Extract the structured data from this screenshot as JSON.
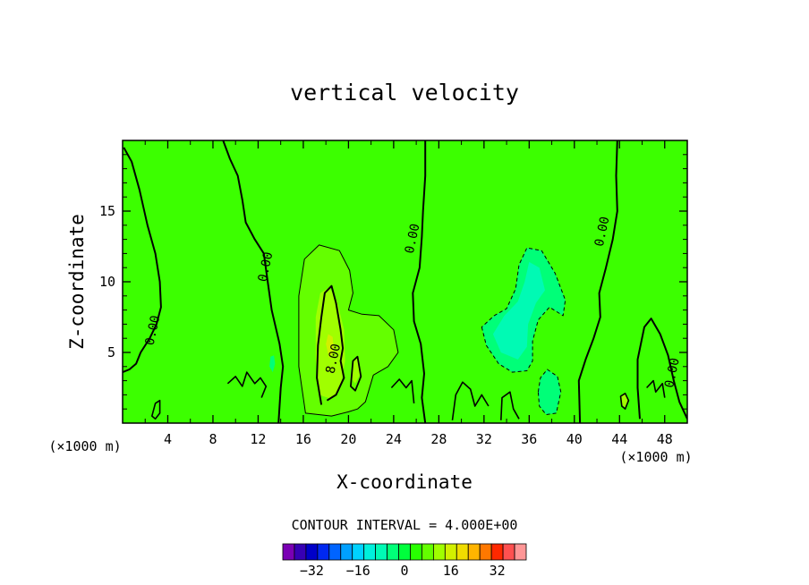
{
  "chart_data": {
    "type": "contour",
    "title": "vertical velocity",
    "xlabel": "X-coordinate",
    "ylabel": "Z-coordinate",
    "x_unit": "(×1000 m)",
    "x_unit_right": "(×1000 m)",
    "xlim": [
      0,
      50
    ],
    "ylim": [
      0,
      20
    ],
    "x_ticks": [
      "4",
      "8",
      "12",
      "16",
      "20",
      "24",
      "28",
      "32",
      "36",
      "40",
      "44",
      "48"
    ],
    "y_ticks": [
      "5",
      "10",
      "15"
    ],
    "contour_interval_text": "CONTOUR INTERVAL = 4.000E+00",
    "contour_interval": 4.0,
    "contour_labels": [
      {
        "text": "0.00",
        "x": 3,
        "y": 6.5
      },
      {
        "text": "0.00",
        "x": 13,
        "y": 11
      },
      {
        "text": "8.00",
        "x": 19,
        "y": 4.5
      },
      {
        "text": "0.00",
        "x": 26,
        "y": 13
      },
      {
        "text": "0.00",
        "x": 42.8,
        "y": 13.5
      },
      {
        "text": "0.00",
        "x": 49,
        "y": 3.5
      }
    ],
    "colorbar": {
      "tick_labels": [
        "-32",
        "-16",
        "0",
        "16",
        "32"
      ],
      "tick_values": [
        -32,
        -16,
        0,
        16,
        32
      ],
      "levels": [
        -40,
        -36,
        -32,
        -28,
        -24,
        -20,
        -16,
        -12,
        -8,
        -4,
        0,
        4,
        8,
        12,
        16,
        20,
        24,
        28,
        32,
        36,
        40
      ],
      "colors": [
        "#7a00b4",
        "#3700b4",
        "#0000c8",
        "#0028f0",
        "#0064ff",
        "#00a0ff",
        "#00d2ff",
        "#00f0dc",
        "#00fab4",
        "#00ff78",
        "#00ff3c",
        "#28ff00",
        "#64ff00",
        "#a0ff00",
        "#d2f000",
        "#f0dc00",
        "#ffb400",
        "#ff7800",
        "#ff2800",
        "#ff5050",
        "#ff9696"
      ]
    },
    "fields": {
      "background_color": "#3cff00",
      "updraft_region_color": "#64ff00",
      "updraft_core_color": "#a0ff00",
      "updraft_peak_color": "#d2f000",
      "downdraft_region_color": "#00ff78",
      "downdraft_core_color": "#00fab4"
    }
  }
}
